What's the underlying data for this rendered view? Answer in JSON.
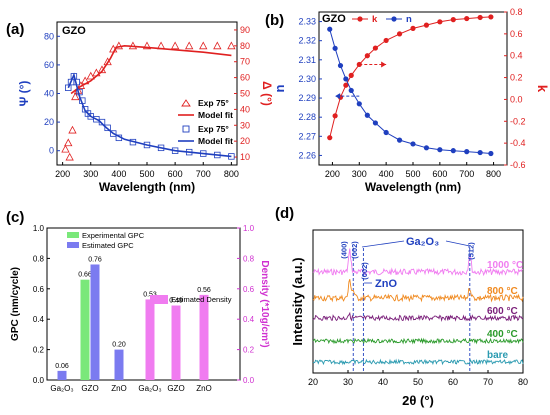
{
  "panel_labels": [
    "(a)",
    "(b)",
    "(c)",
    "(d)"
  ],
  "chart_data": [
    {
      "id": "a",
      "type": "line",
      "title": "GZO",
      "xlabel": "Wavelength (nm)",
      "ylabel_left": "Ψ (°)",
      "ylabel_right": "Δ (°)",
      "xlim": [
        180,
        820
      ],
      "ylim_left": [
        -10,
        90
      ],
      "ylim_right": [
        5,
        95
      ],
      "xticks": [
        200,
        300,
        400,
        500,
        600,
        700,
        800
      ],
      "yticks_left": [
        0,
        20,
        40,
        60,
        80
      ],
      "yticks_right": [
        10,
        20,
        30,
        40,
        50,
        60,
        70,
        80,
        90
      ],
      "colors": {
        "psi": "#1f3fbf",
        "delta": "#e02020"
      },
      "legend": [
        "Exp 75°",
        "Model fit",
        "Exp 75°",
        "Model fit"
      ],
      "series": [
        {
          "name": "Exp 75°",
          "axis": "right",
          "marker": "triangle",
          "x": [
            210,
            220,
            225,
            235,
            245,
            255,
            265,
            280,
            300,
            320,
            340,
            360,
            380,
            400,
            450,
            500,
            550,
            600,
            650,
            700,
            750,
            800
          ],
          "y": [
            15,
            19,
            10,
            27,
            48,
            52,
            55,
            58,
            61,
            63,
            65,
            70,
            78,
            80,
            80,
            80,
            80,
            80,
            80,
            80,
            80,
            80
          ]
        },
        {
          "name": "Model fit",
          "axis": "right",
          "marker": "line",
          "x": [
            230,
            260,
            300,
            340,
            370,
            390,
            420,
            500,
            600,
            700,
            800
          ],
          "y": [
            50,
            54,
            58,
            64,
            72,
            79,
            80,
            79,
            77.5,
            76,
            74
          ]
        },
        {
          "name": "Exp 75°",
          "axis": "left",
          "marker": "square",
          "x": [
            220,
            230,
            240,
            250,
            260,
            270,
            280,
            290,
            300,
            320,
            340,
            360,
            380,
            400,
            450,
            500,
            550,
            600,
            650,
            700,
            750,
            800
          ],
          "y": [
            44,
            48,
            52,
            48,
            41,
            35,
            29,
            26,
            24,
            22,
            20,
            16,
            12,
            9,
            6,
            4,
            2,
            0,
            -1,
            -2,
            -3,
            -4
          ]
        },
        {
          "name": "Model fit",
          "axis": "left",
          "marker": "line",
          "x": [
            220,
            240,
            260,
            280,
            300,
            330,
            350,
            380,
            420,
            500,
            600,
            700,
            800
          ],
          "y": [
            44,
            53,
            38,
            28,
            24,
            21,
            17,
            12,
            8,
            4,
            0,
            -2,
            -4
          ]
        }
      ]
    },
    {
      "id": "b",
      "type": "line",
      "title": "GZO",
      "xlabel": "Wavelength (nm)",
      "ylabel_left": "n",
      "ylabel_right": "k",
      "xlim": [
        150,
        850
      ],
      "ylim_left": [
        2.255,
        2.335
      ],
      "ylim_right": [
        -0.6,
        0.8
      ],
      "xticks": [
        200,
        300,
        400,
        500,
        600,
        700,
        800
      ],
      "yticks_left": [
        2.26,
        2.27,
        2.28,
        2.29,
        2.3,
        2.31,
        2.32,
        2.33
      ],
      "yticks_right": [
        -0.6,
        -0.4,
        -0.2,
        0.0,
        0.2,
        0.4,
        0.6,
        0.8
      ],
      "colors": {
        "n": "#1f3fbf",
        "k": "#e02020"
      },
      "legend": [
        "k",
        "n"
      ],
      "series": [
        {
          "name": "k",
          "axis": "right",
          "x": [
            190,
            210,
            230,
            250,
            270,
            300,
            330,
            360,
            400,
            450,
            500,
            550,
            600,
            650,
            700,
            750,
            790
          ],
          "y": [
            -0.35,
            -0.15,
            0.02,
            0.13,
            0.22,
            0.32,
            0.4,
            0.47,
            0.54,
            0.6,
            0.65,
            0.68,
            0.71,
            0.73,
            0.74,
            0.75,
            0.755
          ]
        },
        {
          "name": "n",
          "axis": "left",
          "x": [
            190,
            210,
            230,
            250,
            270,
            300,
            330,
            360,
            400,
            450,
            500,
            550,
            600,
            650,
            700,
            750,
            790
          ],
          "y": [
            2.326,
            2.316,
            2.307,
            2.3,
            2.294,
            2.287,
            2.281,
            2.277,
            2.272,
            2.268,
            2.266,
            2.264,
            2.263,
            2.2625,
            2.262,
            2.2615,
            2.261
          ]
        }
      ]
    },
    {
      "id": "c",
      "type": "bar",
      "ylabel_left": "GPC (nm/cycle)",
      "ylabel_right": "Density (*10g/cm³)",
      "ylim": [
        0,
        1.0
      ],
      "yticks": [
        0.0,
        0.2,
        0.4,
        0.6,
        0.8,
        1.0
      ],
      "categories": [
        "Ga₂O₃",
        "GZO",
        "ZnO",
        "Ga₂O₃",
        "GZO",
        "ZnO"
      ],
      "legend": [
        "Experimental GPC",
        "Estimated GPC",
        "Estimated Density"
      ],
      "colors": {
        "experimental": "#7ae87a",
        "estimated": "#7b7bf0",
        "density": "#f07cf0"
      },
      "series": [
        {
          "name": "Experimental GPC",
          "values": [
            null,
            0.66,
            null,
            null,
            null,
            null
          ]
        },
        {
          "name": "Estimated GPC",
          "values": [
            0.06,
            0.76,
            0.2,
            null,
            null,
            null
          ]
        },
        {
          "name": "Estimated Density",
          "values": [
            null,
            null,
            null,
            0.53,
            0.49,
            0.56
          ]
        }
      ],
      "data_labels": [
        "0.06",
        "0.66",
        "0.76",
        "0.20",
        "0.53",
        "0.49",
        "0.56"
      ]
    },
    {
      "id": "d",
      "type": "line",
      "xlabel": "2θ (°)",
      "ylabel": "Intensity (a.u.)",
      "xlim": [
        20,
        80
      ],
      "xticks": [
        20,
        30,
        40,
        50,
        60,
        70,
        80
      ],
      "series": [
        {
          "name": "1000 °C",
          "color": "#f07cf0",
          "peaks": [
            [
              30.5,
              70
            ],
            [
              64.8,
              60
            ]
          ]
        },
        {
          "name": "800 °C",
          "color": "#f08a20",
          "peaks": [
            [
              30.5,
              60
            ],
            [
              31.5,
              25
            ],
            [
              64.8,
              35
            ]
          ]
        },
        {
          "name": "600 °C",
          "color": "#7a1f7a",
          "peaks": [
            [
              30.2,
              12
            ]
          ]
        },
        {
          "name": "400 °C",
          "color": "#2a9a2a",
          "peaks": []
        },
        {
          "name": "bare",
          "color": "#2a9ab0",
          "peaks": []
        }
      ],
      "annotations": [
        "(400)",
        "(002)",
        "(002)",
        "(512)",
        "Ga₂O₃",
        "ZnO"
      ],
      "reference_lines": [
        31.5,
        34.4,
        64.8
      ]
    }
  ]
}
